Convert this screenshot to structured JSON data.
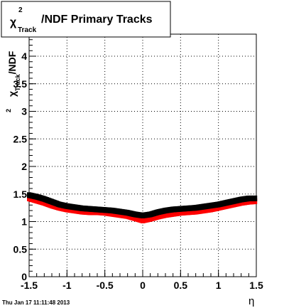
{
  "chart_data": {
    "type": "scatter",
    "title_parts": {
      "chi": "χ",
      "sup": "2",
      "sub": "Track",
      "rest": "/NDF  Primary Tracks"
    },
    "ylabel_parts": {
      "chi": "χ",
      "sup": "2",
      "sub": "Track",
      "rest": "/NDF"
    },
    "xlabel": "η",
    "xlim": [
      -1.5,
      1.5
    ],
    "ylim": [
      0,
      4.4
    ],
    "x_ticks": [
      "-1.5",
      "-1",
      "-0.5",
      "0",
      "0.5",
      "1",
      "1.5"
    ],
    "x_tick_values": [
      -1.5,
      -1,
      -0.5,
      0,
      0.5,
      1,
      1.5
    ],
    "y_ticks": [
      "0",
      "0.5",
      "1",
      "1.5",
      "2",
      "2.5",
      "3",
      "3.5",
      "4"
    ],
    "y_tick_values": [
      0,
      0.5,
      1,
      1.5,
      2,
      2.5,
      3,
      3.5,
      4
    ],
    "grid": true,
    "series": [
      {
        "color": "#000000",
        "x": [
          -1.5,
          -1.4,
          -1.3,
          -1.2,
          -1.1,
          -1.0,
          -0.9,
          -0.8,
          -0.7,
          -0.6,
          -0.5,
          -0.4,
          -0.3,
          -0.2,
          -0.1,
          0.0,
          0.1,
          0.2,
          0.3,
          0.4,
          0.5,
          0.6,
          0.7,
          0.8,
          0.9,
          1.0,
          1.1,
          1.2,
          1.3,
          1.4,
          1.5
        ],
        "y": [
          1.48,
          1.45,
          1.41,
          1.36,
          1.31,
          1.28,
          1.26,
          1.24,
          1.23,
          1.22,
          1.21,
          1.2,
          1.18,
          1.16,
          1.13,
          1.11,
          1.13,
          1.17,
          1.2,
          1.22,
          1.23,
          1.24,
          1.25,
          1.27,
          1.29,
          1.31,
          1.34,
          1.37,
          1.4,
          1.42,
          1.42
        ]
      },
      {
        "color": "#ff0000",
        "x": [
          -1.5,
          -1.4,
          -1.3,
          -1.2,
          -1.1,
          -1.0,
          -0.9,
          -0.8,
          -0.7,
          -0.6,
          -0.5,
          -0.4,
          -0.3,
          -0.2,
          -0.1,
          0.0,
          0.1,
          0.2,
          0.3,
          0.4,
          0.5,
          0.6,
          0.7,
          0.8,
          0.9,
          1.0,
          1.1,
          1.2,
          1.3,
          1.4,
          1.5
        ],
        "y": [
          1.42,
          1.38,
          1.34,
          1.29,
          1.25,
          1.22,
          1.2,
          1.18,
          1.17,
          1.17,
          1.16,
          1.14,
          1.12,
          1.1,
          1.06,
          1.02,
          1.05,
          1.09,
          1.12,
          1.14,
          1.16,
          1.17,
          1.18,
          1.2,
          1.22,
          1.25,
          1.28,
          1.31,
          1.34,
          1.36,
          1.37
        ]
      }
    ]
  },
  "footer": {
    "timestamp": "Thu Jan 17 11:11:48 2013"
  }
}
